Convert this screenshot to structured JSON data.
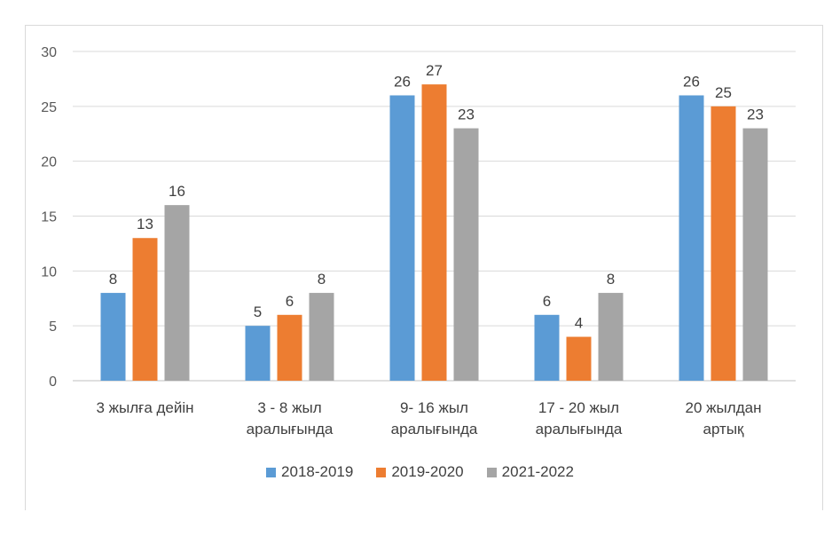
{
  "chart_data": {
    "type": "bar",
    "title": "",
    "xlabel": "",
    "ylabel": "",
    "ylim": [
      0,
      30
    ],
    "yticks": [
      0,
      5,
      10,
      15,
      20,
      25,
      30
    ],
    "grid": true,
    "legend_position": "bottom",
    "categories": [
      [
        "3 жылға дейін"
      ],
      [
        "3 - 8 жыл",
        "аралығында"
      ],
      [
        "9- 16 жыл",
        "аралығында"
      ],
      [
        "17 - 20 жыл",
        "аралығында"
      ],
      [
        "20 жылдан",
        "артық"
      ]
    ],
    "series": [
      {
        "name": "2018-2019",
        "color": "#5b9bd5",
        "values": [
          8,
          5,
          26,
          6,
          26
        ]
      },
      {
        "name": "2019-2020",
        "color": "#ed7d31",
        "values": [
          13,
          6,
          27,
          4,
          25
        ]
      },
      {
        "name": "2021-2022",
        "color": "#a5a5a5",
        "values": [
          16,
          8,
          23,
          8,
          23
        ]
      }
    ]
  }
}
